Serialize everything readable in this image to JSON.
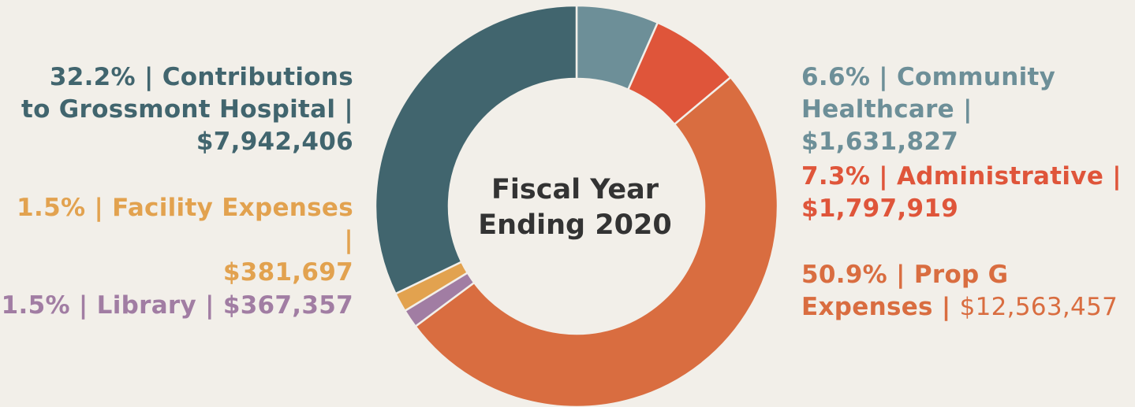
{
  "chart_data": {
    "type": "pie",
    "title": "Fiscal Year Ending 2020",
    "title_lines": [
      "Fiscal Year",
      "Ending 2020"
    ],
    "slices": [
      {
        "key": "community",
        "label": "Community Healthcare",
        "percent": 6.6,
        "value": 1631827,
        "color": "#6d8f98"
      },
      {
        "key": "administrative",
        "label": "Administrative",
        "percent": 7.3,
        "value": 1797919,
        "color": "#df553a"
      },
      {
        "key": "propg",
        "label": "Prop G Expenses",
        "percent": 50.9,
        "value": 12563457,
        "color": "#d96d40"
      },
      {
        "key": "library",
        "label": "Library",
        "percent": 1.5,
        "value": 367357,
        "color": "#a17da3"
      },
      {
        "key": "facility",
        "label": "Facility Expenses",
        "percent": 1.5,
        "value": 381697,
        "color": "#e2a24f"
      },
      {
        "key": "grossmont",
        "label": "Contributions to Grossmont Hospital",
        "percent": 32.2,
        "value": 7942406,
        "color": "#41656e"
      }
    ],
    "legend_placement": "split left and right of donut"
  },
  "labels": {
    "grossmont": {
      "line1": "32.2% | Contributions",
      "line2": "to Grossmont Hospital |",
      "line3": "$7,942,406"
    },
    "facility": {
      "line1": "1.5% | Facility Expenses |",
      "line2": "$381,697"
    },
    "library": {
      "line1": "1.5% | Library | $367,357"
    },
    "community": {
      "line1": "6.6% | Community",
      "line2": "Healthcare | $1,631,827"
    },
    "administrative": {
      "line1": "7.3% | Administrative |",
      "line2": "$1,797,919"
    },
    "propg": {
      "line1": "50.9% | Prop G",
      "line2a": "Expenses | ",
      "line2b": "$12,563,457"
    }
  }
}
